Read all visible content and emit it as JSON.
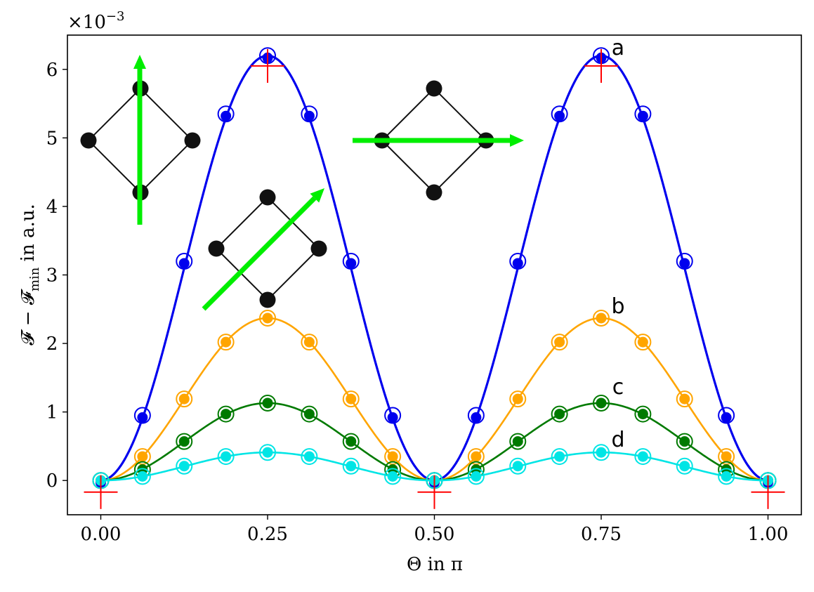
{
  "chart_data": {
    "type": "line",
    "xlabel": "Θ in π",
    "ylabel": "𝓕 − 𝓕",
    "ylabel_sub": "min",
    "ylabel_suffix": " in a.u.",
    "y_multiplier": "×10",
    "y_multiplier_exp": "−3",
    "xlim": [
      -0.05,
      1.05
    ],
    "ylim": [
      -0.5,
      6.5
    ],
    "xticks": [
      0.0,
      0.25,
      0.5,
      0.75,
      1.0
    ],
    "xtick_labels": [
      "0.00",
      "0.25",
      "0.50",
      "0.75",
      "1.00"
    ],
    "yticks": [
      0,
      1,
      2,
      3,
      4,
      5,
      6
    ],
    "ytick_labels": [
      "0",
      "1",
      "2",
      "3",
      "4",
      "5",
      "6"
    ],
    "grid": false,
    "x_points": [
      0,
      0.0625,
      0.125,
      0.1875,
      0.25,
      0.3125,
      0.375,
      0.4375,
      0.5,
      0.5625,
      0.625,
      0.6875,
      0.75,
      0.8125,
      0.875,
      0.9375,
      1.0
    ],
    "series": [
      {
        "name": "a",
        "color": "#0000ee",
        "amplitude": 6.2,
        "values": [
          0,
          0.95,
          3.2,
          5.35,
          6.2,
          5.35,
          3.2,
          0.95,
          0,
          0.95,
          3.2,
          5.35,
          6.2,
          5.35,
          3.2,
          0.95,
          0
        ]
      },
      {
        "name": "b",
        "color": "#ffa500",
        "amplitude": 2.37,
        "values": [
          0,
          0.35,
          1.19,
          2.02,
          2.37,
          2.02,
          1.19,
          0.35,
          0,
          0.35,
          1.19,
          2.02,
          2.37,
          2.02,
          1.19,
          0.35,
          0
        ]
      },
      {
        "name": "c",
        "color": "#007a00",
        "amplitude": 1.13,
        "values": [
          0,
          0.16,
          0.57,
          0.97,
          1.13,
          0.97,
          0.57,
          0.16,
          0,
          0.16,
          0.57,
          0.97,
          1.13,
          0.97,
          0.57,
          0.16,
          0
        ]
      },
      {
        "name": "d",
        "color": "#00e5e5",
        "amplitude": 0.41,
        "values": [
          0,
          0.06,
          0.21,
          0.35,
          0.41,
          0.35,
          0.21,
          0.06,
          0,
          0.06,
          0.21,
          0.35,
          0.41,
          0.35,
          0.21,
          0.06,
          0
        ]
      }
    ],
    "markers_red_plus": [
      {
        "x": 0.0,
        "y": -0.17
      },
      {
        "x": 0.25,
        "y": 6.05
      },
      {
        "x": 0.5,
        "y": -0.17
      },
      {
        "x": 0.75,
        "y": 6.05
      },
      {
        "x": 1.0,
        "y": -0.17
      }
    ],
    "marker_color": "#ff0000",
    "insets": [
      {
        "angle_deg": 90
      },
      {
        "angle_deg": 45
      },
      {
        "angle_deg": 0
      }
    ],
    "inset_arrow_color": "#00ee00"
  }
}
